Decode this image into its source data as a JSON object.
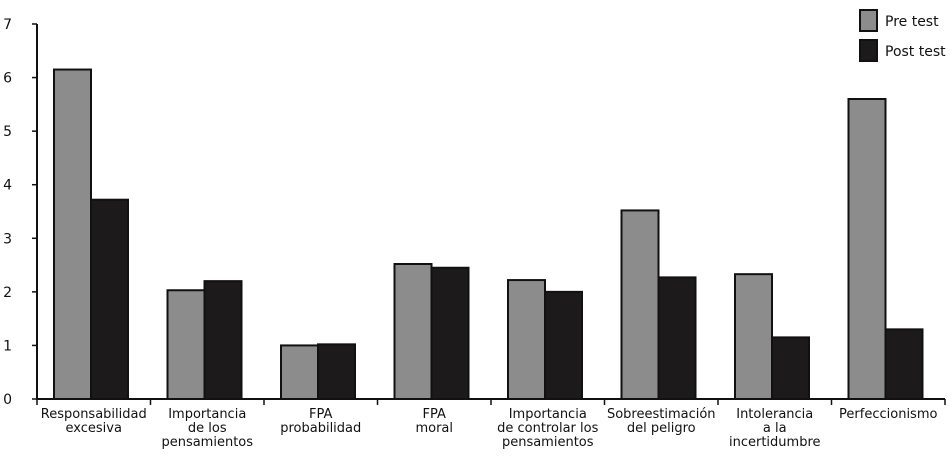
{
  "chart_data": {
    "type": "bar",
    "title": "",
    "xlabel": "",
    "ylabel": "",
    "ylim": [
      0,
      7
    ],
    "yticks": [
      0,
      1,
      2,
      3,
      4,
      5,
      6,
      7
    ],
    "grid": false,
    "legend_position": "top-right",
    "categories": [
      [
        "Responsabilidad",
        "excesiva"
      ],
      [
        "Importancia",
        "de los",
        "pensamientos"
      ],
      [
        "FPA",
        "probabilidad"
      ],
      [
        "FPA",
        "moral"
      ],
      [
        "Importancia",
        "de controlar los",
        "pensamientos"
      ],
      [
        "Sobreestimación",
        "del peligro"
      ],
      [
        "Intolerancia",
        "a la",
        "incertidumbre"
      ],
      [
        "Perfeccionismo"
      ]
    ],
    "series": [
      {
        "name": "Pre test",
        "color": "#8c8c8c",
        "values": [
          6.15,
          2.03,
          1.0,
          2.52,
          2.22,
          3.52,
          2.33,
          5.6
        ]
      },
      {
        "name": "Post test",
        "color": "#1c1a1b",
        "values": [
          3.72,
          2.2,
          1.02,
          2.45,
          2.0,
          2.27,
          1.15,
          1.3
        ]
      }
    ]
  }
}
